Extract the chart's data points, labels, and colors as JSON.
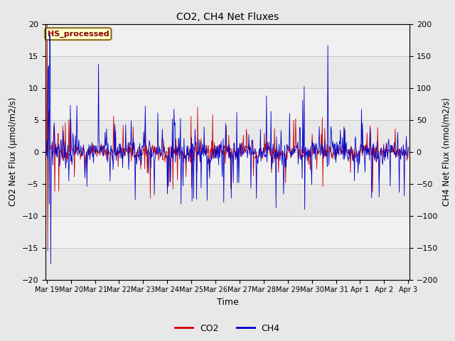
{
  "title": "CO2, CH4 Net Fluxes",
  "xlabel": "Time",
  "ylabel_left": "CO2 Net Flux (μmol/m2/s)",
  "ylabel_right": "CH4 Net Flux (nmol/m2/s)",
  "ylim_left": [
    -20,
    20
  ],
  "ylim_right": [
    -200,
    200
  ],
  "yticks_left": [
    -20,
    -15,
    -10,
    -5,
    0,
    5,
    10,
    15,
    20
  ],
  "yticks_right": [
    -200,
    -150,
    -100,
    -50,
    0,
    50,
    100,
    150,
    200
  ],
  "xtick_labels": [
    "Mar 19",
    "Mar 20",
    "Mar 21",
    "Mar 22",
    "Mar 23",
    "Mar 24",
    "Mar 25",
    "Mar 26",
    "Mar 27",
    "Mar 28",
    "Mar 29",
    "Mar 30",
    "Mar 31",
    "Apr 1",
    "Apr 2",
    "Apr 3"
  ],
  "annotation_text": "HS_processed",
  "annotation_text_color": "#8b0000",
  "annotation_bg": "#ffffcc",
  "annotation_edge": "#8b6914",
  "co2_color": "#cc0000",
  "ch4_color": "#0000cc",
  "fig_bg": "#e8e8e8",
  "plot_bg": "#ffffff",
  "grid_color": "#d0d0d0",
  "legend_co2": "CO2",
  "legend_ch4": "CH4",
  "scale_factor": 10.0,
  "n_days": 15,
  "pts_per_day": 48
}
